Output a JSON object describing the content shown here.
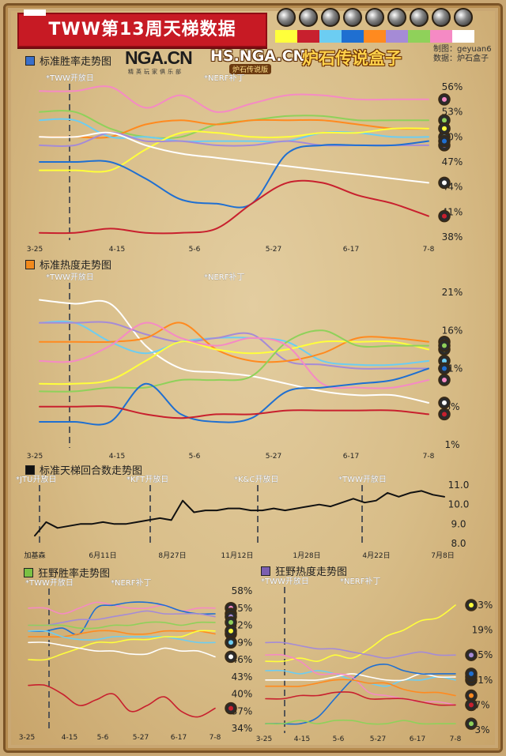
{
  "header": {
    "title": "TWW第13周天梯数据",
    "logo_nga": "NGA.CN",
    "logo_nga_sub": "精英玩家俱乐部",
    "logo_hs": "HS.NGA.CN",
    "logo_hs_sub": "炉石传说版",
    "logo_box": "炉石传说盒子",
    "credit_line1": "制图：geyuan6",
    "credit_line2": "数据：炉石盒子"
  },
  "legend": {
    "classes": [
      {
        "icon": "class-icon-1",
        "color": "#ffff3b"
      },
      {
        "icon": "class-icon-2",
        "color": "#c8202e"
      },
      {
        "icon": "class-icon-3",
        "color": "#6ccdf2"
      },
      {
        "icon": "class-icon-4",
        "color": "#1f6fd1"
      },
      {
        "icon": "class-icon-5",
        "color": "#ff8a1f"
      },
      {
        "icon": "class-icon-6",
        "color": "#a58bd6"
      },
      {
        "icon": "class-icon-7",
        "color": "#8fd15a"
      },
      {
        "icon": "class-icon-8",
        "color": "#f58ac4"
      },
      {
        "icon": "class-icon-9",
        "color": "#ffffff"
      }
    ]
  },
  "chart_data": [
    {
      "type": "line",
      "title": "标准胜率走势图",
      "title_color": "#3a6fc9",
      "x_ticks": [
        "3-25",
        "4-15",
        "5-6",
        "5-27",
        "6-17",
        "7-8"
      ],
      "ylim": [
        38,
        56
      ],
      "y_ticks": [
        "56%",
        "53%",
        "50%",
        "47%",
        "44%",
        "41%",
        "38%"
      ],
      "annotations": [
        "*TWW开放日",
        "*NERF补丁"
      ],
      "series": [
        {
          "color": "#f58ac4",
          "values": [
            55.5,
            55.5,
            56,
            53.5,
            55,
            53,
            54,
            55,
            55,
            54.5,
            54.5,
            54.5
          ]
        },
        {
          "color": "#8fd15a",
          "values": [
            53,
            53,
            51,
            50,
            50,
            51.5,
            52,
            52.5,
            52.5,
            52,
            52,
            52
          ]
        },
        {
          "color": "#ff8a1f",
          "values": [
            50,
            50,
            50,
            51.5,
            52,
            51.5,
            52,
            52,
            52,
            51.5,
            51,
            51
          ]
        },
        {
          "color": "#6ccdf2",
          "values": [
            52,
            52,
            50,
            50,
            49.5,
            49.5,
            49.5,
            49.5,
            50.5,
            50.5,
            50,
            50
          ]
        },
        {
          "color": "#ffff3b",
          "values": [
            46,
            46,
            46,
            48.5,
            50.5,
            50.5,
            50,
            50,
            50.5,
            50.5,
            51,
            51
          ]
        },
        {
          "color": "#a58bd6",
          "values": [
            49,
            49,
            50.5,
            49.5,
            49.5,
            49,
            49,
            49.5,
            49,
            49,
            49,
            49
          ]
        },
        {
          "color": "#ffffff",
          "values": [
            50,
            50,
            50.5,
            49,
            48,
            47.5,
            47,
            46.5,
            46,
            45.5,
            45,
            44.5
          ]
        },
        {
          "color": "#1f6fd1",
          "values": [
            47,
            47,
            47,
            45,
            42.5,
            42,
            42,
            48,
            49,
            49,
            49,
            49.5
          ]
        },
        {
          "color": "#c8202e",
          "values": [
            38.5,
            38.5,
            39,
            38.5,
            38.5,
            39,
            42,
            44.5,
            44.5,
            43,
            42,
            40.5
          ]
        }
      ]
    },
    {
      "type": "line",
      "title": "标准热度走势图",
      "title_color": "#f28a1c",
      "x_ticks": [
        "3-25",
        "4-15",
        "5-6",
        "5-27",
        "6-17",
        "7-8"
      ],
      "ylim": [
        1,
        21
      ],
      "y_ticks": [
        "21%",
        "16%",
        "11%",
        "6%",
        "1%"
      ],
      "annotations": [
        "*TWW开放日",
        "*NERF补丁"
      ],
      "series": [
        {
          "color": "#ffffff",
          "values": [
            20,
            19.5,
            19.5,
            14,
            11,
            10.5,
            10,
            9,
            8,
            7.5,
            7.5,
            6.5
          ]
        },
        {
          "color": "#6ccdf2",
          "values": [
            17,
            17,
            14.5,
            13,
            14.5,
            15,
            15,
            14.5,
            12,
            11.5,
            11.5,
            12
          ]
        },
        {
          "color": "#a58bd6",
          "values": [
            17,
            17,
            17,
            15.5,
            14.5,
            15,
            15.5,
            12,
            11.5,
            11,
            11,
            11
          ]
        },
        {
          "color": "#ff8a1f",
          "values": [
            14.5,
            14.5,
            14.5,
            15,
            17,
            13.5,
            12,
            12,
            13,
            15,
            15,
            14.5
          ]
        },
        {
          "color": "#ffff3b",
          "values": [
            9,
            9,
            9.5,
            12,
            14.5,
            13.5,
            13,
            13.5,
            14.5,
            14.5,
            14.5,
            13.5
          ]
        },
        {
          "color": "#8fd15a",
          "values": [
            8,
            8,
            8.5,
            8.5,
            9.5,
            9.5,
            10,
            14.5,
            16,
            14,
            14,
            14
          ]
        },
        {
          "color": "#f58ac4",
          "values": [
            12,
            12,
            14,
            17,
            15,
            14,
            15,
            14,
            9,
            8.5,
            8.5,
            9.5
          ]
        },
        {
          "color": "#1f6fd1",
          "values": [
            4,
            4,
            4,
            9,
            5,
            4,
            4.5,
            8,
            8.5,
            9,
            9.5,
            11
          ]
        },
        {
          "color": "#c8202e",
          "values": [
            6,
            6,
            6,
            5,
            4.5,
            5,
            5,
            5.5,
            5.5,
            5.5,
            5.5,
            5
          ]
        }
      ]
    },
    {
      "type": "line",
      "title": "标准天梯回合数走势图",
      "title_color": "#111111",
      "x_ticks": [
        "加基森",
        "6月11日",
        "8月27日",
        "11月12日",
        "1月28日",
        "4月22日",
        "7月8日"
      ],
      "ylim": [
        8.0,
        11.0
      ],
      "y_ticks": [
        "11.0",
        "10.0",
        "9.0",
        "8.0"
      ],
      "annotations": [
        "*JTU开放日",
        "*KFT开放日",
        "*K&C开放日",
        "*TWW开放日"
      ],
      "series": [
        {
          "color": "#111111",
          "values": [
            8.4,
            9.1,
            8.8,
            8.9,
            9.0,
            9.0,
            9.1,
            9.0,
            9.0,
            9.1,
            9.2,
            9.3,
            9.2,
            10.2,
            9.6,
            9.7,
            9.7,
            9.8,
            9.8,
            9.7,
            9.7,
            9.8,
            9.7,
            9.8,
            9.9,
            10.0,
            9.9,
            10.1,
            10.3,
            10.1,
            10.2,
            10.6,
            10.4,
            10.6,
            10.7,
            10.5,
            10.4
          ]
        }
      ]
    },
    {
      "type": "line",
      "title": "狂野胜率走势图",
      "title_color": "#7ac143",
      "x_ticks": [
        "3-25",
        "4-15",
        "5-6",
        "5-27",
        "6-17",
        "7-8"
      ],
      "ylim": [
        34,
        58
      ],
      "y_ticks": [
        "58%",
        "55%",
        "52%",
        "49%",
        "46%",
        "43%",
        "40%",
        "37%",
        "34%"
      ],
      "annotations": [
        "*TWW开放日",
        "*NERF补丁"
      ],
      "series": [
        {
          "color": "#f58ac4",
          "values": [
            55,
            55,
            54,
            55,
            56,
            55.5,
            55,
            55,
            55.5,
            54.5,
            55,
            55
          ]
        },
        {
          "color": "#1f6fd1",
          "values": [
            51,
            51,
            51.5,
            50.5,
            55,
            55.5,
            56,
            56,
            55.5,
            54.5,
            54,
            54
          ]
        },
        {
          "color": "#a58bd6",
          "values": [
            52,
            52,
            52.5,
            53,
            53,
            53.5,
            54,
            54.5,
            54,
            54,
            54,
            53.5
          ]
        },
        {
          "color": "#8fd15a",
          "values": [
            52,
            52,
            52,
            51.5,
            51.5,
            52,
            52,
            52.5,
            52.5,
            52,
            52.5,
            52.5
          ]
        },
        {
          "color": "#ff8a1f",
          "values": [
            50,
            50,
            50,
            50.5,
            51,
            51,
            50.5,
            50.5,
            51,
            51,
            51,
            50.5
          ]
        },
        {
          "color": "#6ccdf2",
          "values": [
            51,
            51,
            50,
            49.5,
            49.5,
            50,
            50,
            50,
            50,
            49.5,
            49,
            49
          ]
        },
        {
          "color": "#ffff3b",
          "values": [
            46,
            46,
            47,
            48,
            49,
            49,
            49.5,
            49.5,
            50,
            50,
            51,
            51
          ]
        },
        {
          "color": "#ffffff",
          "values": [
            49,
            49,
            48.5,
            48,
            47.5,
            47.5,
            47,
            47,
            48,
            47.5,
            47.5,
            46.5
          ]
        },
        {
          "color": "#c8202e",
          "values": [
            41.5,
            41.5,
            40,
            38,
            39,
            40,
            37,
            38,
            39.5,
            37,
            36,
            37.5
          ]
        }
      ]
    },
    {
      "type": "line",
      "title": "狂野热度走势图",
      "title_color": "#7b5fb0",
      "x_ticks": [
        "3-25",
        "4-15",
        "5-6",
        "5-27",
        "6-17",
        "7-8"
      ],
      "ylim": [
        3,
        23
      ],
      "y_ticks": [
        "23%",
        "19%",
        "15%",
        "11%",
        "7%",
        "3%"
      ],
      "annotations": [
        "*TWW开放日",
        "*NERF补丁"
      ],
      "series": [
        {
          "color": "#ffff3b",
          "values": [
            14,
            14,
            14.5,
            14,
            15,
            14.5,
            16,
            18,
            19,
            20.5,
            21,
            23
          ]
        },
        {
          "color": "#a58bd6",
          "values": [
            17,
            17,
            16.5,
            16,
            16,
            15.5,
            15,
            14.5,
            15,
            15.5,
            15,
            15
          ]
        },
        {
          "color": "#6ccdf2",
          "values": [
            12.5,
            12.5,
            12,
            12.5,
            12,
            11,
            10.5,
            10,
            11,
            11,
            11.5,
            11
          ]
        },
        {
          "color": "#ffffff",
          "values": [
            11,
            11,
            11,
            11,
            11.5,
            12,
            11.5,
            11,
            11,
            12,
            11.5,
            11.5
          ]
        },
        {
          "color": "#1f6fd1",
          "values": [
            4,
            4,
            4,
            5,
            8,
            11,
            13,
            13.5,
            12.5,
            12,
            12,
            12
          ]
        },
        {
          "color": "#f58ac4",
          "values": [
            15,
            15,
            14,
            12,
            12,
            11.5,
            9,
            8.5,
            8,
            7.5,
            7.5,
            7
          ]
        },
        {
          "color": "#ff8a1f",
          "values": [
            10,
            10,
            10,
            10.5,
            11,
            11,
            10.5,
            10.5,
            9.5,
            9,
            9,
            8.5
          ]
        },
        {
          "color": "#c8202e",
          "values": [
            8,
            8,
            8.5,
            8.5,
            9,
            9,
            8,
            8,
            8,
            7.5,
            7,
            7
          ]
        },
        {
          "color": "#8fd15a",
          "values": [
            4,
            4,
            4.5,
            4,
            4.5,
            4.5,
            4,
            4,
            4.5,
            4,
            4,
            4
          ]
        }
      ]
    }
  ]
}
